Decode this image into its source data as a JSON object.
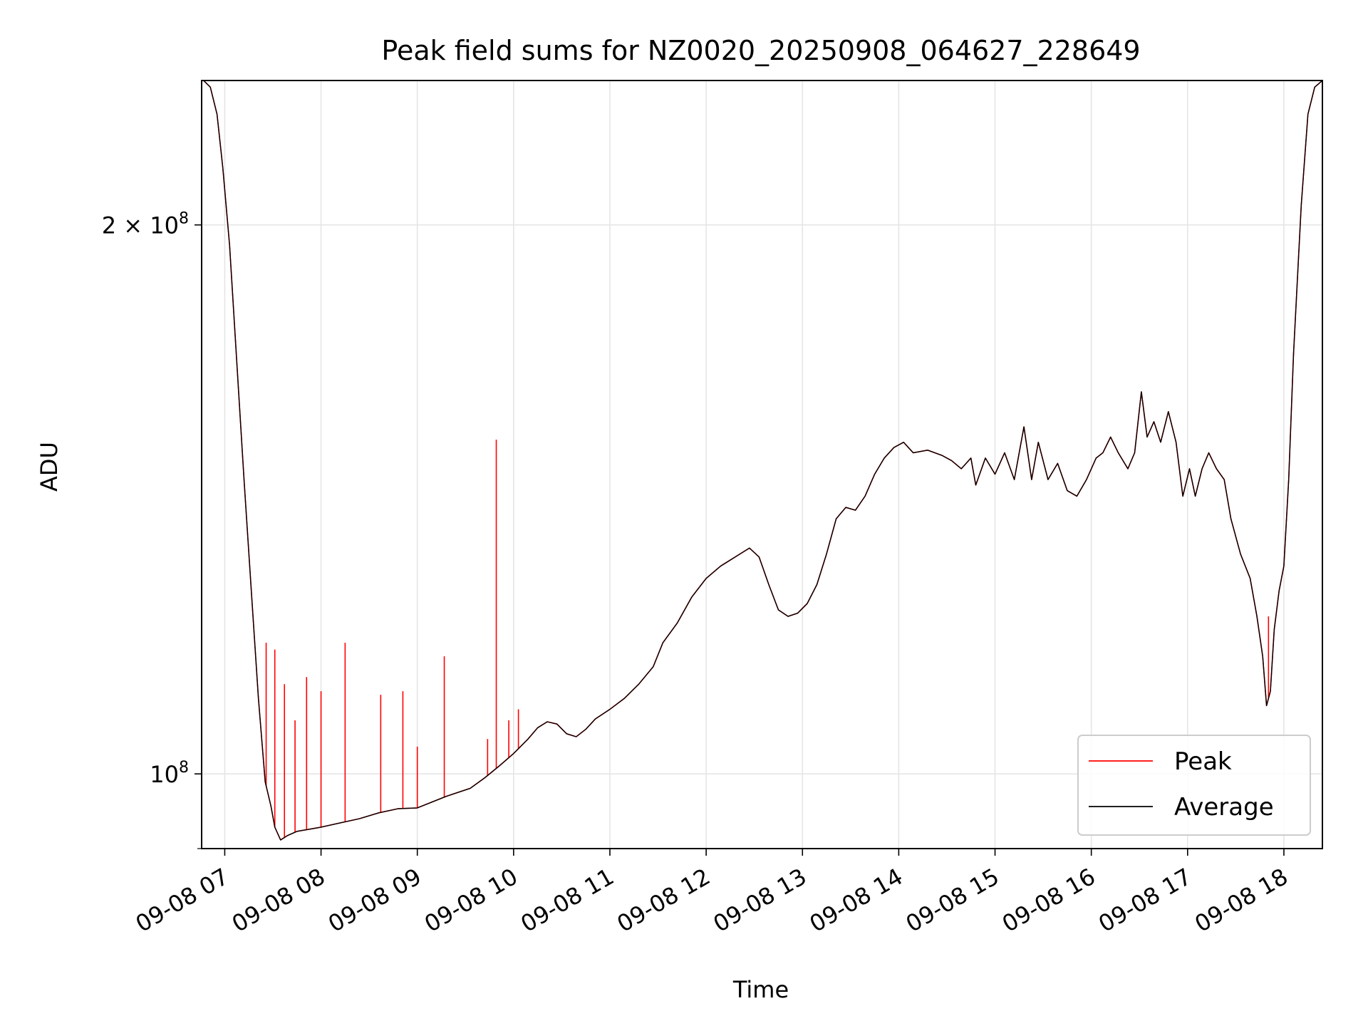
{
  "chart_data": {
    "type": "line",
    "title": "Peak field sums for NZ0020_20250908_064627_228649",
    "xlabel": "Time",
    "ylabel": "ADU",
    "x_unit": "hours of day (2025-09-08)",
    "xlim": [
      6.76,
      18.4
    ],
    "ylim": [
      91000000.0,
      240000000.0
    ],
    "yscale": "log",
    "grid": true,
    "legend_position": "lower right",
    "x_ticks": [
      {
        "value": 7,
        "label": "09-08 07"
      },
      {
        "value": 8,
        "label": "09-08 08"
      },
      {
        "value": 9,
        "label": "09-08 09"
      },
      {
        "value": 10,
        "label": "09-08 10"
      },
      {
        "value": 11,
        "label": "09-08 11"
      },
      {
        "value": 12,
        "label": "09-08 12"
      },
      {
        "value": 13,
        "label": "09-08 13"
      },
      {
        "value": 14,
        "label": "09-08 14"
      },
      {
        "value": 15,
        "label": "09-08 15"
      },
      {
        "value": 16,
        "label": "09-08 16"
      },
      {
        "value": 17,
        "label": "09-08 17"
      },
      {
        "value": 18,
        "label": "09-08 18"
      }
    ],
    "y_ticks": [
      {
        "value": 100000000,
        "base": "10",
        "exp": "8",
        "mantissa": ""
      },
      {
        "value": 200000000,
        "base": "10",
        "exp": "8",
        "mantissa": "2 × "
      }
    ],
    "series": [
      {
        "name": "Average",
        "color": "#000000",
        "points": [
          [
            6.78,
            240000000.0
          ],
          [
            6.85,
            238000000.0
          ],
          [
            6.92,
            230000000.0
          ],
          [
            6.98,
            215000000.0
          ],
          [
            7.05,
            195000000.0
          ],
          [
            7.12,
            170000000.0
          ],
          [
            7.2,
            145000000.0
          ],
          [
            7.28,
            125000000.0
          ],
          [
            7.35,
            110000000.0
          ],
          [
            7.42,
            99000000.0
          ],
          [
            7.48,
            96000000.0
          ],
          [
            7.52,
            93500000.0
          ],
          [
            7.58,
            92000000.0
          ],
          [
            7.65,
            92500000.0
          ],
          [
            7.75,
            93000000.0
          ],
          [
            7.9,
            93300000.0
          ],
          [
            8.0,
            93500000.0
          ],
          [
            8.2,
            94000000.0
          ],
          [
            8.4,
            94500000.0
          ],
          [
            8.6,
            95200000.0
          ],
          [
            8.8,
            95700000.0
          ],
          [
            9.0,
            95800000.0
          ],
          [
            9.15,
            96500000.0
          ],
          [
            9.3,
            97200000.0
          ],
          [
            9.45,
            97800000.0
          ],
          [
            9.55,
            98200000.0
          ],
          [
            9.7,
            99500000.0
          ],
          [
            9.85,
            101000000.0
          ],
          [
            10.0,
            102600000.0
          ],
          [
            10.15,
            104500000.0
          ],
          [
            10.25,
            106000000.0
          ],
          [
            10.35,
            106800000.0
          ],
          [
            10.45,
            106500000.0
          ],
          [
            10.55,
            105200000.0
          ],
          [
            10.65,
            104800000.0
          ],
          [
            10.75,
            105800000.0
          ],
          [
            10.85,
            107200000.0
          ],
          [
            11.0,
            108500000.0
          ],
          [
            11.15,
            110000000.0
          ],
          [
            11.3,
            112000000.0
          ],
          [
            11.45,
            114500000.0
          ],
          [
            11.55,
            118000000.0
          ],
          [
            11.7,
            121000000.0
          ],
          [
            11.85,
            125000000.0
          ],
          [
            12.0,
            128000000.0
          ],
          [
            12.15,
            130000000.0
          ],
          [
            12.3,
            131500000.0
          ],
          [
            12.45,
            133000000.0
          ],
          [
            12.55,
            131500000.0
          ],
          [
            12.65,
            127000000.0
          ],
          [
            12.75,
            123000000.0
          ],
          [
            12.85,
            122000000.0
          ],
          [
            12.95,
            122500000.0
          ],
          [
            13.05,
            124000000.0
          ],
          [
            13.15,
            127000000.0
          ],
          [
            13.25,
            132000000.0
          ],
          [
            13.35,
            138000000.0
          ],
          [
            13.45,
            140000000.0
          ],
          [
            13.55,
            139500000.0
          ],
          [
            13.65,
            142000000.0
          ],
          [
            13.75,
            146000000.0
          ],
          [
            13.85,
            149000000.0
          ],
          [
            13.95,
            151000000.0
          ],
          [
            14.05,
            152000000.0
          ],
          [
            14.15,
            150000000.0
          ],
          [
            14.3,
            150500000.0
          ],
          [
            14.45,
            149500000.0
          ],
          [
            14.55,
            148500000.0
          ],
          [
            14.65,
            147000000.0
          ],
          [
            14.75,
            149000000.0
          ],
          [
            14.8,
            144000000.0
          ],
          [
            14.9,
            149000000.0
          ],
          [
            15.0,
            146000000.0
          ],
          [
            15.1,
            150000000.0
          ],
          [
            15.2,
            145000000.0
          ],
          [
            15.3,
            155000000.0
          ],
          [
            15.38,
            145000000.0
          ],
          [
            15.45,
            152000000.0
          ],
          [
            15.55,
            145000000.0
          ],
          [
            15.65,
            148000000.0
          ],
          [
            15.75,
            143000000.0
          ],
          [
            15.85,
            142000000.0
          ],
          [
            15.95,
            145000000.0
          ],
          [
            16.05,
            149000000.0
          ],
          [
            16.12,
            150000000.0
          ],
          [
            16.2,
            153000000.0
          ],
          [
            16.28,
            150000000.0
          ],
          [
            16.38,
            147000000.0
          ],
          [
            16.45,
            150000000.0
          ],
          [
            16.52,
            162000000.0
          ],
          [
            16.58,
            153000000.0
          ],
          [
            16.65,
            156000000.0
          ],
          [
            16.72,
            152000000.0
          ],
          [
            16.8,
            158000000.0
          ],
          [
            16.88,
            152000000.0
          ],
          [
            16.95,
            142000000.0
          ],
          [
            17.02,
            147000000.0
          ],
          [
            17.08,
            142000000.0
          ],
          [
            17.15,
            147000000.0
          ],
          [
            17.22,
            150000000.0
          ],
          [
            17.3,
            147000000.0
          ],
          [
            17.38,
            145000000.0
          ],
          [
            17.45,
            138000000.0
          ],
          [
            17.55,
            132000000.0
          ],
          [
            17.65,
            128000000.0
          ],
          [
            17.72,
            122000000.0
          ],
          [
            17.78,
            116000000.0
          ],
          [
            17.82,
            109000000.0
          ],
          [
            17.86,
            111000000.0
          ],
          [
            17.9,
            120000000.0
          ],
          [
            17.95,
            126000000.0
          ],
          [
            18.0,
            130000000.0
          ],
          [
            18.05,
            145000000.0
          ],
          [
            18.1,
            170000000.0
          ],
          [
            18.18,
            205000000.0
          ],
          [
            18.25,
            230000000.0
          ],
          [
            18.32,
            238000000.0
          ],
          [
            18.4,
            240000000.0
          ]
        ]
      },
      {
        "name": "Peak",
        "color": "#ff0000",
        "spikes": [
          [
            7.43,
            118000000.0
          ],
          [
            7.52,
            117000000.0
          ],
          [
            7.62,
            112000000.0
          ],
          [
            7.73,
            107000000.0
          ],
          [
            7.85,
            113000000.0
          ],
          [
            8.0,
            111000000.0
          ],
          [
            8.25,
            118000000.0
          ],
          [
            8.62,
            110500000.0
          ],
          [
            8.85,
            111000000.0
          ],
          [
            9.0,
            103500000.0
          ],
          [
            9.28,
            116000000.0
          ],
          [
            9.73,
            104500000.0
          ],
          [
            9.82,
            152500000.0
          ],
          [
            9.95,
            107000000.0
          ],
          [
            10.05,
            108500000.0
          ],
          [
            17.84,
            122000000.0
          ]
        ]
      }
    ]
  }
}
